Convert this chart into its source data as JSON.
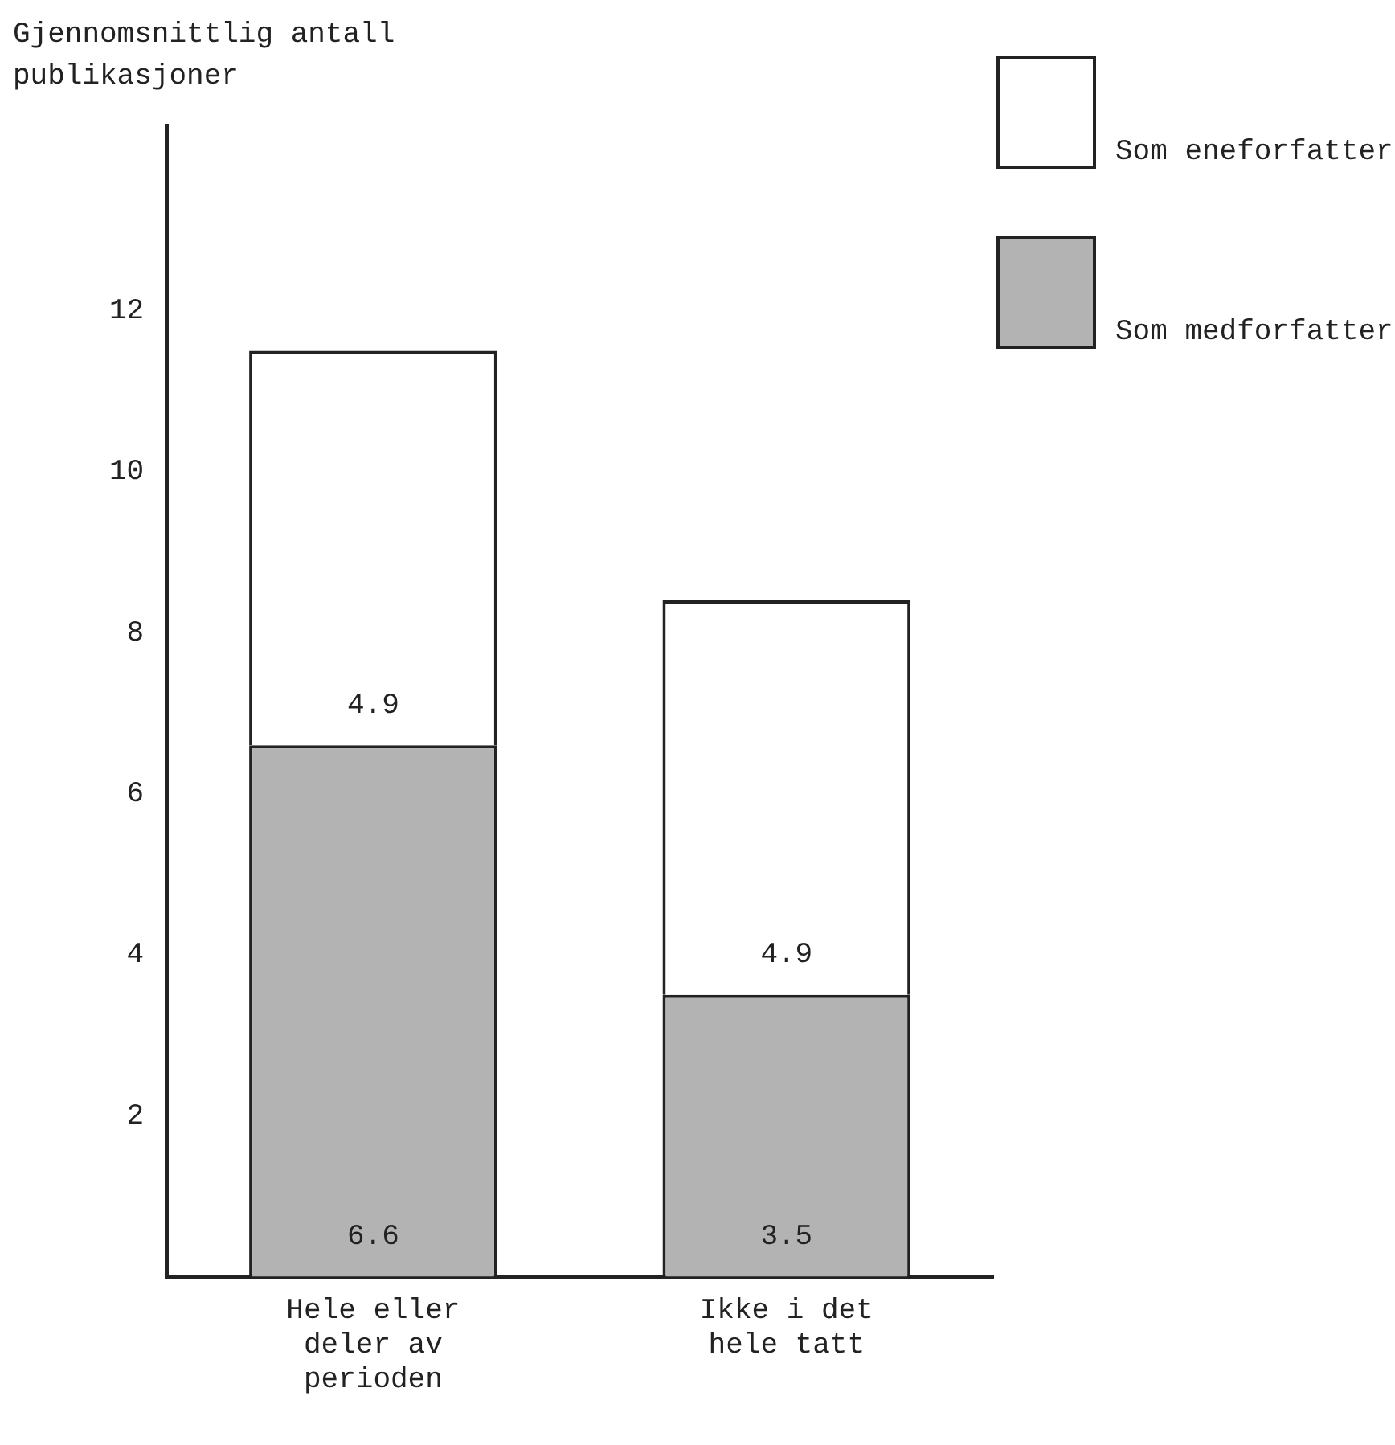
{
  "chart_data": {
    "type": "bar",
    "stacked": true,
    "ylabel": "Gjennomsnittlig antall publikasjoner",
    "categories": [
      "Hele eller deler av perioden",
      "Ikke i det hele tatt"
    ],
    "series": [
      {
        "name": "Som medforfatter",
        "color": "#b3b3b3",
        "values": [
          6.6,
          3.5
        ]
      },
      {
        "name": "Som eneforfatter",
        "color": "#ffffff",
        "values": [
          4.9,
          4.9
        ]
      }
    ],
    "ylim": [
      0,
      14.3
    ],
    "yticks": [
      2,
      4,
      6,
      8,
      10,
      12
    ],
    "data_labels": true,
    "legend": "top right",
    "grid": false
  }
}
